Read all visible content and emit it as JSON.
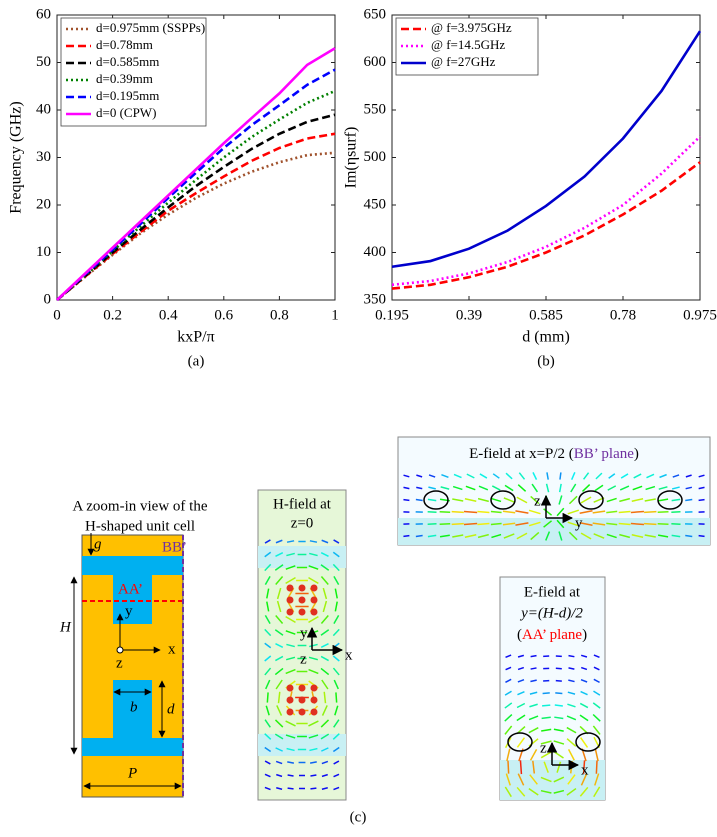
{
  "chart_data": [
    {
      "type": "line",
      "caption": "(a)",
      "xlabel": "kxP/π",
      "ylabel": "Frequency (GHz)",
      "x": [
        0,
        0.1,
        0.2,
        0.3,
        0.4,
        0.5,
        0.6,
        0.7,
        0.8,
        0.9,
        1
      ],
      "xlim": [
        0,
        1
      ],
      "xticks": [
        0,
        0.2,
        0.4,
        0.6,
        0.8,
        1
      ],
      "ylim": [
        0,
        60
      ],
      "yticks": [
        0,
        10,
        20,
        30,
        40,
        50,
        60
      ],
      "legend": "upper left",
      "series": [
        {
          "name": "d=0.975mm (SSPPs)",
          "color": "#a0522d",
          "dash": "dotted",
          "values": [
            0,
            4.8,
            9.5,
            14,
            18,
            21.5,
            24.5,
            27,
            29,
            30.5,
            31
          ]
        },
        {
          "name": "d=0.78mm",
          "color": "#ff0000",
          "dash": "dashed",
          "values": [
            0,
            4.9,
            9.7,
            14.3,
            18.8,
            22.5,
            26,
            29.3,
            32,
            34,
            35
          ]
        },
        {
          "name": "d=0.585mm",
          "color": "#000000",
          "dash": "dashed",
          "values": [
            0,
            5,
            10,
            14.8,
            19.5,
            24,
            28,
            31.8,
            35,
            37.5,
            39
          ]
        },
        {
          "name": "d=0.39mm",
          "color": "#008000",
          "dash": "dotted",
          "values": [
            0,
            5.1,
            10.3,
            15.5,
            20.5,
            25.3,
            30,
            34.3,
            38,
            41.5,
            44
          ]
        },
        {
          "name": "d=0.195mm",
          "color": "#0000ff",
          "dash": "dashed",
          "values": [
            0,
            5.3,
            10.6,
            16,
            21.5,
            26.8,
            32,
            36.8,
            41,
            45.3,
            48.5
          ]
        },
        {
          "name": "d=0 (CPW)",
          "color": "#ff00ff",
          "dash": "solid",
          "values": [
            0,
            5.5,
            11,
            16.5,
            22,
            27.5,
            33,
            38.3,
            43.5,
            49.5,
            53
          ]
        }
      ]
    },
    {
      "type": "line",
      "caption": "(b)",
      "xlabel": "d (mm)",
      "ylabel": "Im(ηsurf)",
      "x": [
        0.195,
        0.2925,
        0.39,
        0.4875,
        0.585,
        0.6825,
        0.78,
        0.8775,
        0.975
      ],
      "xlim": [
        0.195,
        0.975
      ],
      "xticks": [
        0.195,
        0.39,
        0.585,
        0.78,
        0.975
      ],
      "ylim": [
        350,
        650
      ],
      "yticks": [
        350,
        400,
        450,
        500,
        550,
        600,
        650
      ],
      "legend": "upper left",
      "series": [
        {
          "name": "@ f=3.975GHz",
          "color": "#ff0000",
          "dash": "dashed",
          "values": [
            362,
            366,
            374,
            385,
            400,
            418,
            440,
            465,
            495
          ]
        },
        {
          "name": "@ f=14.5GHz",
          "color": "#ff00ff",
          "dash": "dotted",
          "values": [
            366,
            370,
            378,
            390,
            406,
            426,
            450,
            483,
            522
          ]
        },
        {
          "name": "@ f=27GHz",
          "color": "#0000cc",
          "dash": "solid",
          "values": [
            385,
            391,
            404,
            423,
            449,
            480,
            520,
            570,
            633
          ]
        }
      ]
    }
  ],
  "diagram": {
    "caption": "(c)",
    "unit_cell": {
      "title": [
        "A zoom-in view of the",
        "H-shaped unit cell"
      ],
      "labels": {
        "bb": "BB’",
        "aa": "AA’",
        "g": "g",
        "y": "y",
        "z": "z",
        "x": "x",
        "H": "H",
        "b": "b",
        "d": "d",
        "P": "P"
      }
    },
    "h_field": {
      "title": [
        "H-field at",
        "z=0"
      ],
      "labels": {
        "y": "y",
        "z": "z",
        "x": "x"
      }
    },
    "e_field_bb": {
      "title": [
        "E-field at x=P/2 (",
        "BB’ plane",
        ")"
      ],
      "labels": {
        "z": "z",
        "y": "y"
      }
    },
    "e_field_aa": {
      "title": [
        "E-field at",
        "y=(H-d)/2",
        "(",
        "AA’ plane",
        ")"
      ],
      "labels": {
        "z": "z",
        "x": "x"
      }
    }
  }
}
